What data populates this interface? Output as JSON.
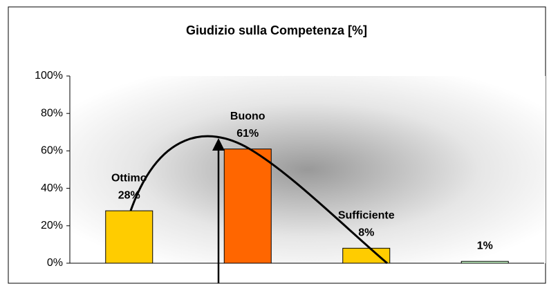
{
  "chart_data": {
    "type": "bar",
    "title": "Giudizio sulla Competenza [%]",
    "categories": [
      "Ottimo",
      "Buono",
      "Sufficiente",
      null
    ],
    "values": [
      28,
      61,
      8,
      1
    ],
    "value_labels": [
      "28%",
      "61%",
      "8%",
      "1%"
    ],
    "colors": [
      "#ffcc00",
      "#ff6600",
      "#ffcc00",
      "#ccffcc"
    ],
    "ylim": [
      0,
      100
    ],
    "yticks": [
      {
        "value": 0,
        "label": "0%"
      },
      {
        "value": 20,
        "label": "20%"
      },
      {
        "value": 40,
        "label": "40%"
      },
      {
        "value": 60,
        "label": "60%"
      },
      {
        "value": 80,
        "label": "80%"
      },
      {
        "value": 100,
        "label": "100%"
      }
    ]
  }
}
